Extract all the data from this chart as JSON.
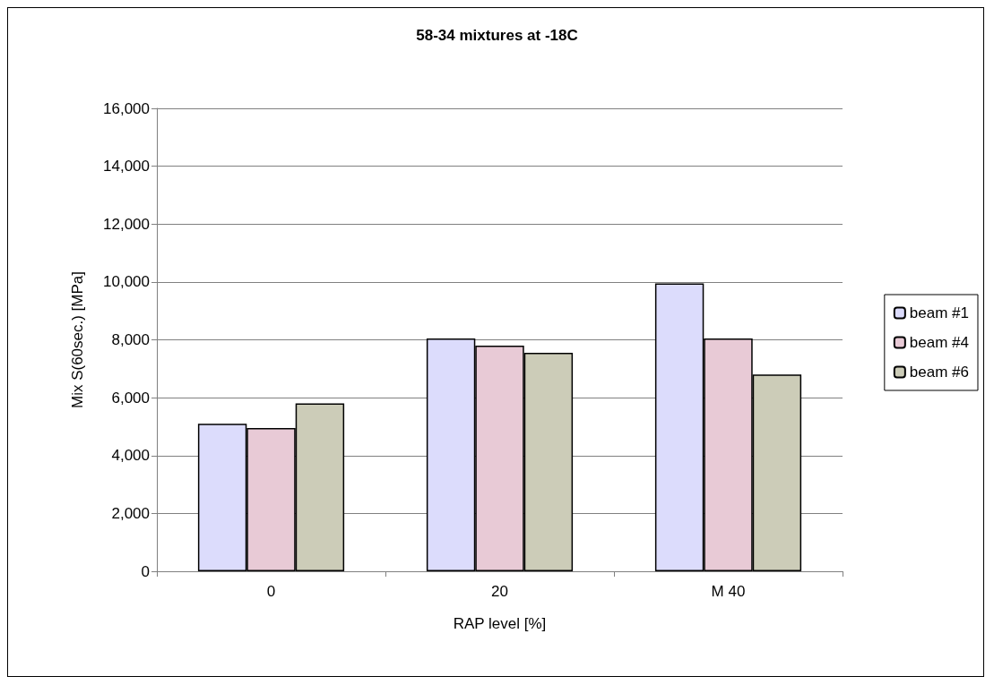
{
  "chart_data": {
    "type": "bar",
    "title": "58-34 mixtures at -18C",
    "xlabel": "RAP level [%]",
    "ylabel": "Mix S(60sec.) [MPa]",
    "categories": [
      "0",
      "20",
      "M 40"
    ],
    "series": [
      {
        "name": "beam #1",
        "color": "#dcdcfc",
        "values": [
          5100,
          8050,
          9950
        ]
      },
      {
        "name": "beam #4",
        "color": "#e8cad6",
        "values": [
          4950,
          7800,
          8050
        ]
      },
      {
        "name": "beam #6",
        "color": "#ccccb8",
        "values": [
          5800,
          7550,
          6800
        ]
      }
    ],
    "ylim": [
      0,
      16000
    ],
    "yticks": [
      {
        "value": 0,
        "label": "0"
      },
      {
        "value": 2000,
        "label": "2,000"
      },
      {
        "value": 4000,
        "label": "4,000"
      },
      {
        "value": 6000,
        "label": "6,000"
      },
      {
        "value": 8000,
        "label": "8,000"
      },
      {
        "value": 10000,
        "label": "10,000"
      },
      {
        "value": 12000,
        "label": "12,000"
      },
      {
        "value": 14000,
        "label": "14,000"
      },
      {
        "value": 16000,
        "label": "16,000"
      }
    ],
    "grid": "y",
    "legend": "right"
  }
}
